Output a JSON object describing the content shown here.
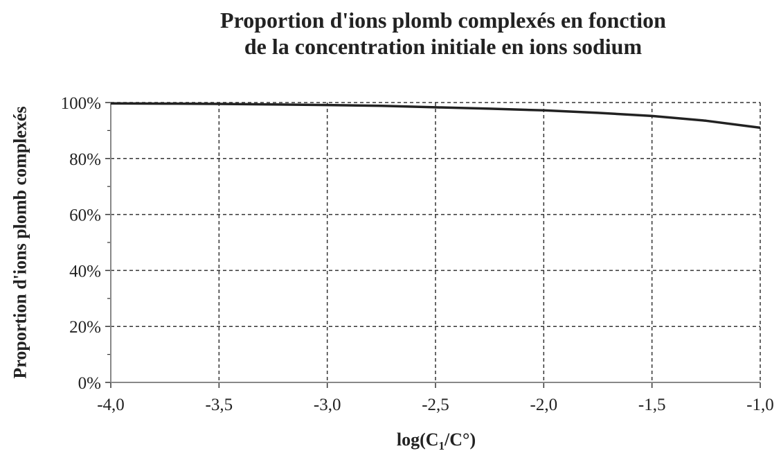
{
  "chart_data": {
    "type": "line",
    "title_lines": [
      "Proportion d'ions plomb complexés en fonction",
      "de la concentration initiale en ions sodium"
    ],
    "xlabel": "log(C1/C°)",
    "xlabel_main": "log(C",
    "xlabel_sub": "1",
    "xlabel_tail": "/C°)",
    "ylabel": "Proportion d'ions plomb complexés",
    "xlim": [
      -4.0,
      -1.0
    ],
    "ylim": [
      0,
      100
    ],
    "x_ticks": [
      "-4,0",
      "-3,5",
      "-3,0",
      "-2,5",
      "-2,0",
      "-1,5",
      "-1,0"
    ],
    "y_ticks": [
      "0%",
      "20%",
      "40%",
      "60%",
      "80%",
      "100%"
    ],
    "grid": true,
    "series": [
      {
        "x": [
          -4.0,
          -3.75,
          -3.5,
          -3.25,
          -3.0,
          -2.75,
          -2.5,
          -2.25,
          -2.0,
          -1.75,
          -1.5,
          -1.25,
          -1.0
        ],
        "y": [
          99.7,
          99.6,
          99.5,
          99.3,
          99.1,
          98.8,
          98.3,
          97.8,
          97.2,
          96.3,
          95.2,
          93.5,
          91.0
        ]
      }
    ]
  }
}
